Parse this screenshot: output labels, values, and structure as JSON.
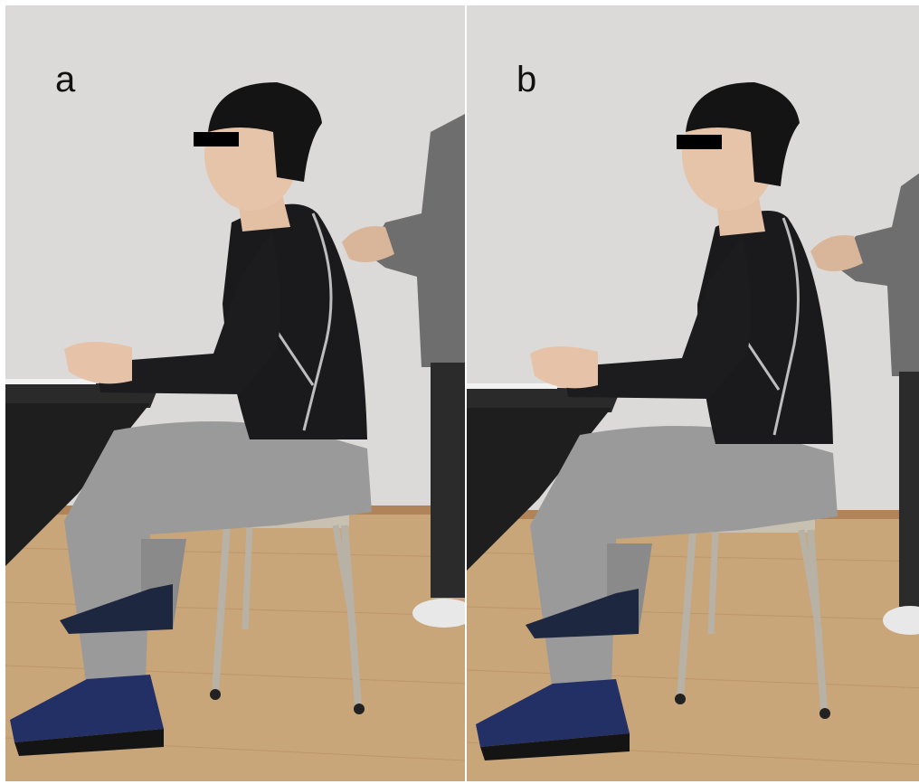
{
  "panels": [
    {
      "id": "a",
      "label": "a"
    },
    {
      "id": "b",
      "label": "b"
    }
  ]
}
